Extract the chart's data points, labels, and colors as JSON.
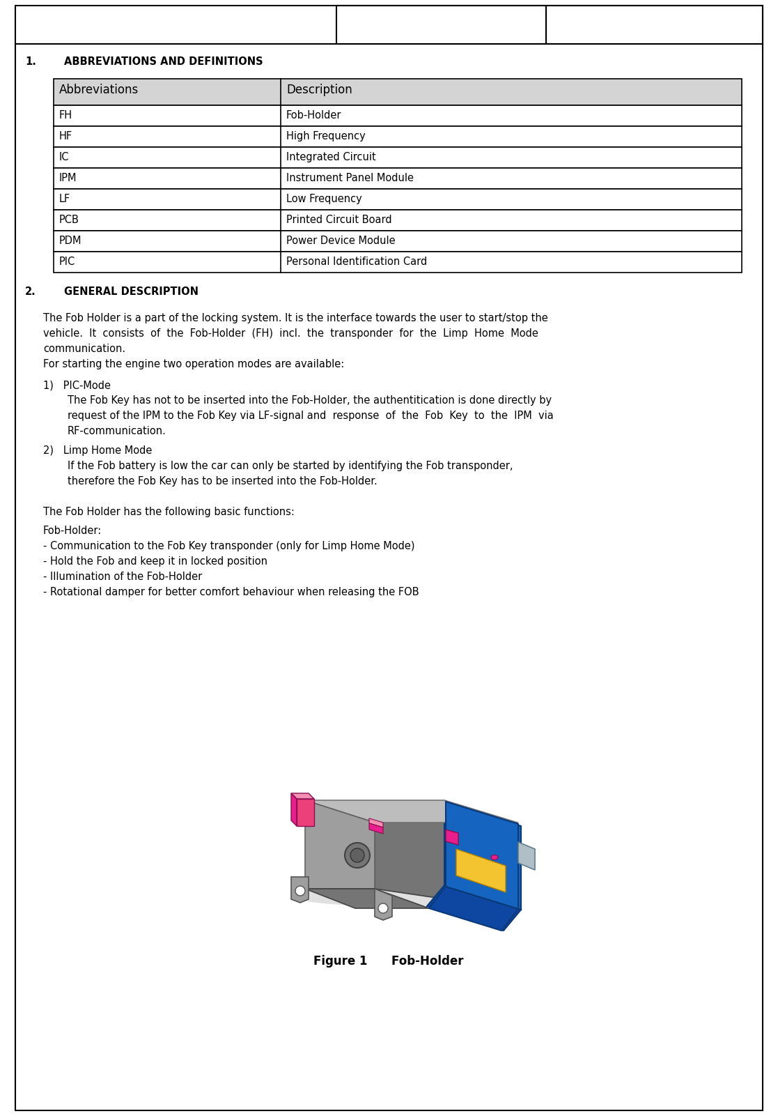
{
  "page_bg": "#ffffff",
  "border_color": "#000000",
  "section1_title_num": "1.",
  "section1_title_text": "ABBREVIATIONS AND DEFINITIONS",
  "table_header": [
    "Abbreviations",
    "Description"
  ],
  "table_rows": [
    [
      "FH",
      "Fob-Holder"
    ],
    [
      "HF",
      "High Frequency"
    ],
    [
      "IC",
      "Integrated Circuit"
    ],
    [
      "IPM",
      "Instrument Panel Module"
    ],
    [
      "LF",
      "Low Frequency"
    ],
    [
      "PCB",
      "Printed Circuit Board"
    ],
    [
      "PDM",
      "Power Device Module"
    ],
    [
      "PIC",
      "Personal Identification Card"
    ]
  ],
  "table_header_bg": "#d4d4d4",
  "section2_title_num": "2.",
  "section2_title_text": "GENERAL DESCRIPTION",
  "para1_lines": [
    "The Fob Holder is a part of the locking system. It is the interface towards the user to start/stop the",
    "vehicle.  It  consists  of  the  Fob-Holder  (FH)  incl.  the  transponder  for  the  Limp  Home  Mode",
    "communication.",
    "For starting the engine two operation modes are available:"
  ],
  "item1_head": "1)   PIC-Mode",
  "item1_body": [
    "The Fob Key has not to be inserted into the Fob-Holder, the authentitication is done directly by",
    "request of the IPM to the Fob Key via LF-signal and  response  of  the  Fob  Key  to  the  IPM  via",
    "RF-communication."
  ],
  "item2_head": "2)   Limp Home Mode",
  "item2_body": [
    "If the Fob battery is low the car can only be started by identifying the Fob transponder,",
    "therefore the Fob Key has to be inserted into the Fob-Holder."
  ],
  "para2": "The Fob Holder has the following basic functions:",
  "fob_holder_lines": [
    "Fob-Holder:",
    "- Communication to the Fob Key transponder (only for Limp Home Mode)",
    "- Hold the Fob and keep it in locked position",
    "- Illumination of the Fob-Holder",
    "- Rotational damper for better comfort behaviour when releasing the FOB"
  ],
  "figure_caption": "Figure 1      Fob-Holder",
  "font_size_body": 10.5,
  "font_size_section": 10.5,
  "font_size_table_header": 12,
  "font_size_table_body": 10.5
}
